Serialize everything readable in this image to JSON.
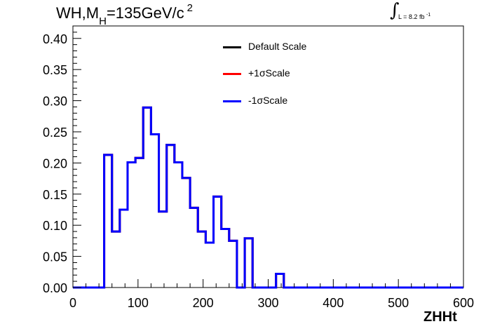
{
  "chart_data": {
    "type": "line",
    "title_main": "WH,M",
    "title_sub": "H",
    "title_rest": "=135GeV/c",
    "title_sup": "2",
    "lumi_text": "L = 8.2 fb",
    "lumi_exp": "-1",
    "xlabel": "ZHHt",
    "ylabel": "",
    "xlim": [
      0,
      600
    ],
    "ylim": [
      0,
      0.42
    ],
    "x_ticks": [
      "0",
      "100",
      "200",
      "300",
      "400",
      "500",
      "600"
    ],
    "y_ticks": [
      "0.00",
      "0.05",
      "0.10",
      "0.15",
      "0.20",
      "0.25",
      "0.30",
      "0.35",
      "0.40"
    ],
    "bin_width": 12,
    "series": [
      {
        "name": "Default Scale",
        "color": "#000000",
        "values": [
          0,
          0,
          0,
          0,
          0.213,
          0.09,
          0.125,
          0.201,
          0.208,
          0.289,
          0.246,
          0.122,
          0.229,
          0.201,
          0.176,
          0.128,
          0.09,
          0.072,
          0.146,
          0.094,
          0.075,
          0,
          0.079,
          0,
          0,
          0,
          0.022,
          0,
          0,
          0,
          0,
          0,
          0,
          0,
          0,
          0,
          0,
          0,
          0,
          0,
          0,
          0,
          0,
          0,
          0,
          0,
          0,
          0,
          0,
          0
        ]
      },
      {
        "name": "+1σScale",
        "color": "#ff0000",
        "values": [
          0,
          0,
          0,
          0,
          0.213,
          0.09,
          0.125,
          0.201,
          0.208,
          0.289,
          0.246,
          0.122,
          0.229,
          0.201,
          0.176,
          0.128,
          0.09,
          0.072,
          0.146,
          0.094,
          0.075,
          0,
          0.079,
          0,
          0,
          0,
          0.022,
          0,
          0,
          0,
          0,
          0,
          0,
          0,
          0,
          0,
          0,
          0,
          0,
          0,
          0,
          0,
          0,
          0,
          0,
          0,
          0,
          0,
          0,
          0
        ]
      },
      {
        "name": "-1σScale",
        "color": "#0000ff",
        "values": [
          0,
          0,
          0,
          0,
          0.213,
          0.09,
          0.125,
          0.201,
          0.208,
          0.289,
          0.246,
          0.122,
          0.229,
          0.201,
          0.176,
          0.128,
          0.09,
          0.072,
          0.146,
          0.094,
          0.075,
          0,
          0.079,
          0,
          0,
          0,
          0.022,
          0,
          0,
          0,
          0,
          0,
          0,
          0,
          0,
          0,
          0,
          0,
          0,
          0,
          0,
          0,
          0,
          0,
          0,
          0,
          0,
          0,
          0,
          0
        ]
      }
    ],
    "legend_position": "top-center",
    "grid": false
  }
}
